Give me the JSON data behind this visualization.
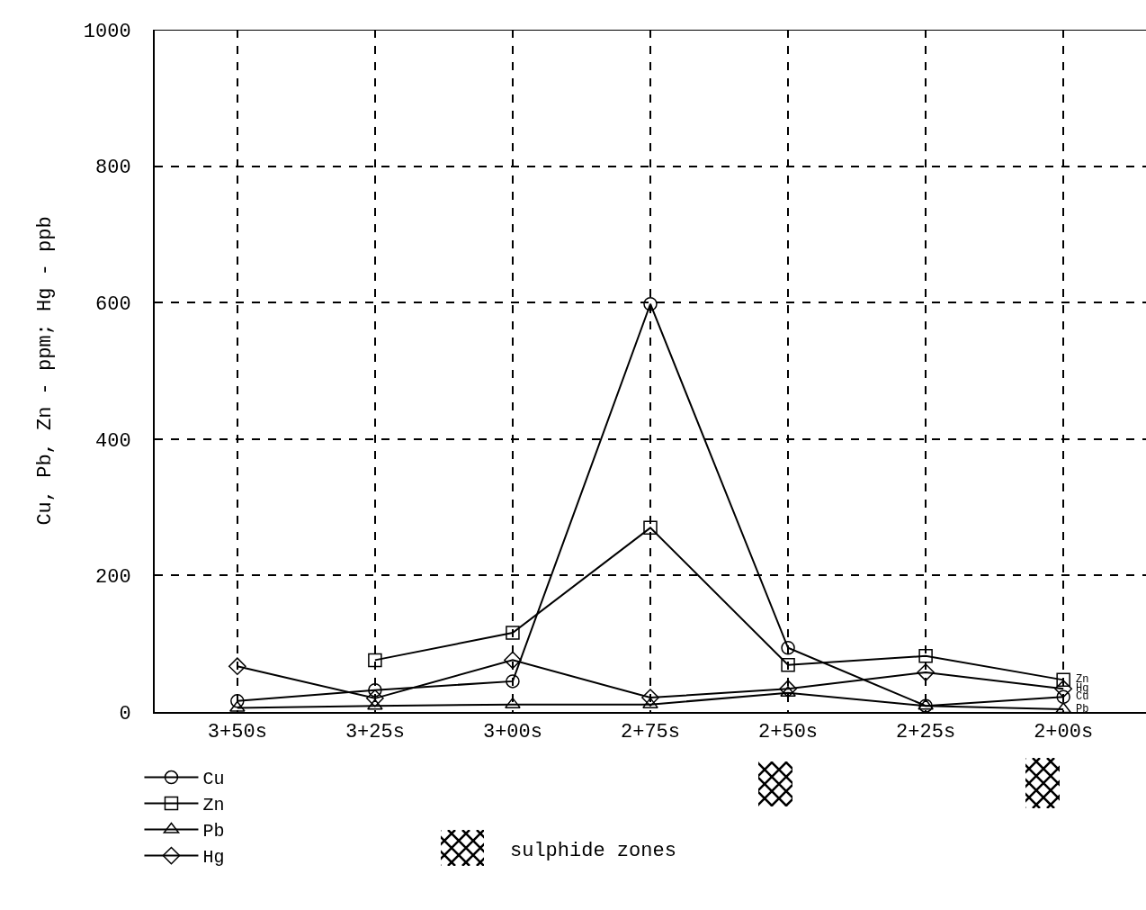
{
  "chart_data": {
    "type": "line",
    "ylabel": "Cu, Pb, Zn - ppm; Hg - ppb",
    "categories": [
      "3+50s",
      "3+25s",
      "3+00s",
      "2+75s",
      "2+50s",
      "2+25s",
      "2+00s"
    ],
    "series": [
      {
        "name": "Cu",
        "color": "#000000",
        "marker": "circle",
        "values": [
          16,
          32,
          45,
          598,
          94,
          9,
          22
        ]
      },
      {
        "name": "Zn",
        "color": "#000000",
        "marker": "square",
        "values": [
          null,
          76,
          116,
          270,
          69,
          82,
          47
        ]
      },
      {
        "name": "Pb",
        "color": "#000000",
        "marker": "triangle",
        "values": [
          6,
          9,
          11,
          11,
          28,
          9,
          4
        ]
      },
      {
        "name": "Hg",
        "color": "#000000",
        "marker": "diamond",
        "values": [
          67,
          20,
          76,
          21,
          34,
          58,
          34
        ]
      }
    ],
    "ylim": [
      0,
      1000
    ],
    "yticks": [
      0,
      200,
      400,
      600,
      800,
      1000
    ],
    "grid": true,
    "legend": "bottom left",
    "line_style": "solid",
    "annotations": [
      {
        "text": "Zn",
        "x": "2+00s",
        "y": 47
      },
      {
        "text": "Hg",
        "x": "2+00s",
        "y": 34
      },
      {
        "text": "Cu",
        "x": "2+00s",
        "y": 22
      },
      {
        "text": "Pb",
        "x": "2+00s",
        "y": 4
      },
      "sulphide zones"
    ]
  }
}
